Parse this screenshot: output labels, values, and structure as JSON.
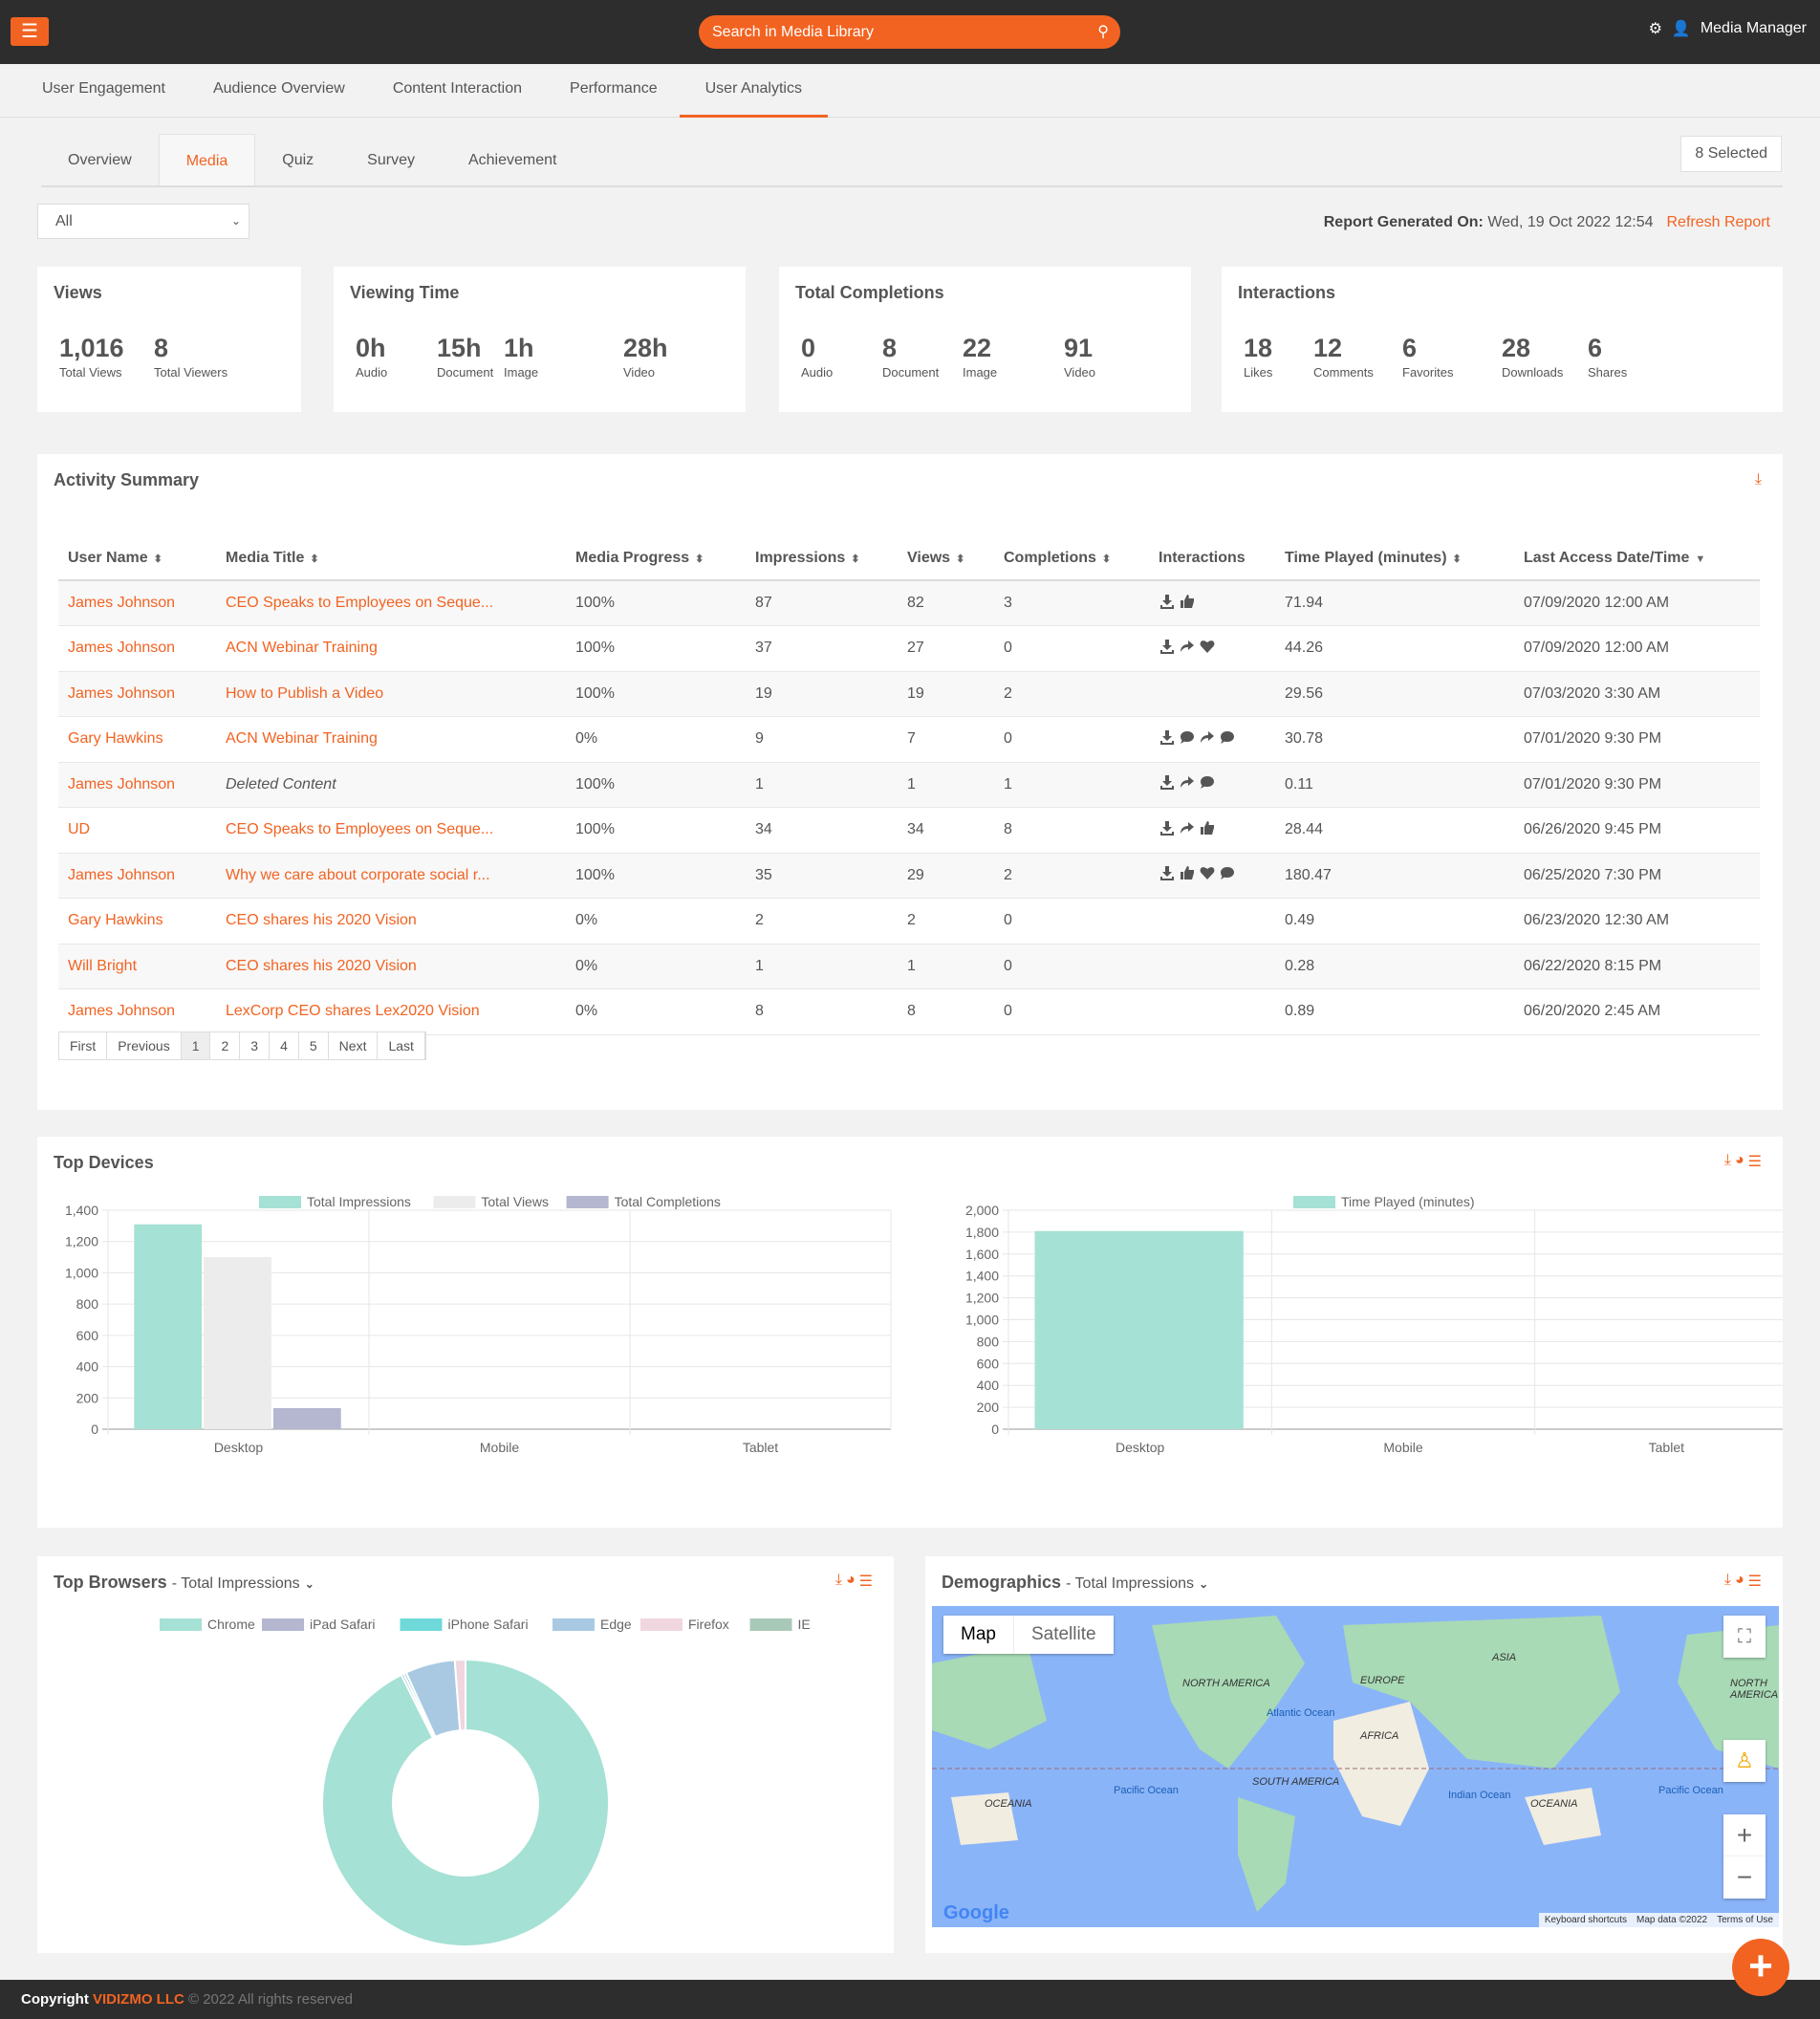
{
  "header": {
    "search_placeholder": "Search in Media Library",
    "user_label": "Media Manager"
  },
  "nav": {
    "tabs": [
      "User Engagement",
      "Audience Overview",
      "Content Interaction",
      "Performance",
      "User Analytics"
    ],
    "active": "User Analytics"
  },
  "subtabs": {
    "tabs": [
      "Overview",
      "Media",
      "Quiz",
      "Survey",
      "Achievement"
    ],
    "active": "Media",
    "selected_label": "8 Selected"
  },
  "filter": {
    "value": "All"
  },
  "report": {
    "label": "Report Generated On:",
    "value": "Wed, 19 Oct 2022 12:54",
    "refresh": "Refresh Report"
  },
  "stats": [
    {
      "title": "Views",
      "items": [
        {
          "v": "1,016",
          "l": "Total Views"
        },
        {
          "v": "8",
          "l": "Total Viewers"
        }
      ]
    },
    {
      "title": "Viewing Time",
      "items": [
        {
          "v": "0h",
          "l": "Audio"
        },
        {
          "v": "15h",
          "l": "Document"
        },
        {
          "v": "1h",
          "l": "Image"
        },
        {
          "v": "28h",
          "l": "Video"
        }
      ]
    },
    {
      "title": "Total Completions",
      "items": [
        {
          "v": "0",
          "l": "Audio"
        },
        {
          "v": "8",
          "l": "Document"
        },
        {
          "v": "22",
          "l": "Image"
        },
        {
          "v": "91",
          "l": "Video"
        }
      ]
    },
    {
      "title": "Interactions",
      "items": [
        {
          "v": "18",
          "l": "Likes"
        },
        {
          "v": "12",
          "l": "Comments"
        },
        {
          "v": "6",
          "l": "Favorites"
        },
        {
          "v": "28",
          "l": "Downloads"
        },
        {
          "v": "6",
          "l": "Shares"
        }
      ]
    }
  ],
  "activity": {
    "title": "Activity Summary",
    "columns": [
      "User Name",
      "Media Title",
      "Media Progress",
      "Impressions",
      "Views",
      "Completions",
      "Interactions",
      "Time Played (minutes)",
      "Last Access Date/Time"
    ],
    "rows": [
      {
        "user": "James Johnson",
        "title": "CEO Speaks to Employees on Seque...",
        "progress": "100%",
        "impressions": "87",
        "views": "82",
        "completions": "3",
        "interactions": [
          "download",
          "like"
        ],
        "time": "71.94",
        "last": "07/09/2020 12:00 AM"
      },
      {
        "user": "James Johnson",
        "title": "ACN Webinar Training",
        "progress": "100%",
        "impressions": "37",
        "views": "27",
        "completions": "0",
        "interactions": [
          "download",
          "share",
          "heart"
        ],
        "time": "44.26",
        "last": "07/09/2020 12:00 AM"
      },
      {
        "user": "James Johnson",
        "title": "How to Publish a Video",
        "progress": "100%",
        "impressions": "19",
        "views": "19",
        "completions": "2",
        "interactions": [],
        "time": "29.56",
        "last": "07/03/2020 3:30 AM"
      },
      {
        "user": "Gary Hawkins",
        "title": "ACN Webinar Training",
        "progress": "0%",
        "impressions": "9",
        "views": "7",
        "completions": "0",
        "interactions": [
          "download",
          "comment",
          "share",
          "comment"
        ],
        "time": "30.78",
        "last": "07/01/2020 9:30 PM"
      },
      {
        "user": "James Johnson",
        "title": "Deleted Content",
        "deleted": true,
        "progress": "100%",
        "impressions": "1",
        "views": "1",
        "completions": "1",
        "interactions": [
          "download",
          "share",
          "comment"
        ],
        "time": "0.11",
        "last": "07/01/2020 9:30 PM"
      },
      {
        "user": "UD",
        "title": "CEO Speaks to Employees on Seque...",
        "progress": "100%",
        "impressions": "34",
        "views": "34",
        "completions": "8",
        "interactions": [
          "download",
          "share",
          "like"
        ],
        "time": "28.44",
        "last": "06/26/2020 9:45 PM"
      },
      {
        "user": "James Johnson",
        "title": "Why we care about corporate social r...",
        "progress": "100%",
        "impressions": "35",
        "views": "29",
        "completions": "2",
        "interactions": [
          "download",
          "like",
          "heart",
          "comment"
        ],
        "time": "180.47",
        "last": "06/25/2020 7:30 PM"
      },
      {
        "user": "Gary Hawkins",
        "title": "CEO shares his 2020 Vision",
        "progress": "0%",
        "impressions": "2",
        "views": "2",
        "completions": "0",
        "interactions": [],
        "time": "0.49",
        "last": "06/23/2020 12:30 AM"
      },
      {
        "user": "Will Bright",
        "title": "CEO shares his 2020 Vision",
        "progress": "0%",
        "impressions": "1",
        "views": "1",
        "completions": "0",
        "interactions": [],
        "time": "0.28",
        "last": "06/22/2020 8:15 PM"
      },
      {
        "user": "James Johnson",
        "title": "LexCorp CEO shares Lex2020 Vision",
        "progress": "0%",
        "impressions": "8",
        "views": "8",
        "completions": "0",
        "interactions": [],
        "time": "0.89",
        "last": "06/20/2020 2:45 AM"
      }
    ],
    "pagination": [
      "First",
      "Previous",
      "1",
      "2",
      "3",
      "4",
      "5",
      "Next",
      "Last"
    ],
    "current_page": "1"
  },
  "top_devices": {
    "title": "Top Devices"
  },
  "chart_data": [
    {
      "type": "bar",
      "title": "Top Devices",
      "categories": [
        "Desktop",
        "Mobile",
        "Tablet"
      ],
      "ylim": [
        0,
        1400
      ],
      "yticks": [
        "0",
        "200",
        "400",
        "600",
        "800",
        "1,000",
        "1,200",
        "1,400"
      ],
      "series": [
        {
          "name": "Total Impressions",
          "color": "#a5e1d5",
          "values": [
            1310,
            0,
            0
          ]
        },
        {
          "name": "Total Views",
          "color": "#ececec",
          "values": [
            1100,
            0,
            0
          ]
        },
        {
          "name": "Total Completions",
          "color": "#b4b7cf",
          "values": [
            135,
            0,
            0
          ]
        }
      ]
    },
    {
      "type": "bar",
      "title": "Top Devices - Time Played",
      "categories": [
        "Desktop",
        "Mobile",
        "Tablet"
      ],
      "ylim": [
        0,
        2000
      ],
      "yticks": [
        "0",
        "200",
        "400",
        "600",
        "800",
        "1,000",
        "1,200",
        "1,400",
        "1,600",
        "1,800",
        "2,000"
      ],
      "series": [
        {
          "name": "Time Played (minutes)",
          "color": "#a5e1d5",
          "values": [
            1810,
            0,
            0
          ]
        }
      ]
    },
    {
      "type": "pie",
      "title": "Top Browsers",
      "metric": "Total Impressions",
      "labels": [
        "Chrome",
        "iPad Safari",
        "iPhone Safari",
        "Edge",
        "Firefox",
        "IE"
      ],
      "values": [
        92.6,
        0.3,
        0.3,
        5.6,
        1.2,
        0
      ],
      "colors": [
        "#a5e1d5",
        "#b4b7cf",
        "#6fd9d9",
        "#a9c9e2",
        "#f0d6df",
        "#a9c9b8"
      ]
    }
  ],
  "browsers": {
    "title": "Top Browsers",
    "metric": "- Total Impressions"
  },
  "demographics": {
    "title": "Demographics",
    "metric": "- Total Impressions",
    "map_tab": "Map",
    "satellite_tab": "Satellite",
    "labels": [
      "NORTH AMERICA",
      "EUROPE",
      "ASIA",
      "AFRICA",
      "SOUTH AMERICA",
      "OCEANIA",
      "OCEANIA",
      "NORTH AMERICA"
    ],
    "oceans": [
      "Atlantic Ocean",
      "Pacific Ocean",
      "Indian Ocean",
      "Pacific Ocean"
    ],
    "google": "Google",
    "keyboard": "Keyboard shortcuts",
    "mapdata": "Map data ©2022",
    "terms": "Terms of Use"
  },
  "footer": {
    "copyright": "Copyright",
    "brand": "VIDIZMO LLC",
    "rest": "© 2022 All rights reserved"
  }
}
